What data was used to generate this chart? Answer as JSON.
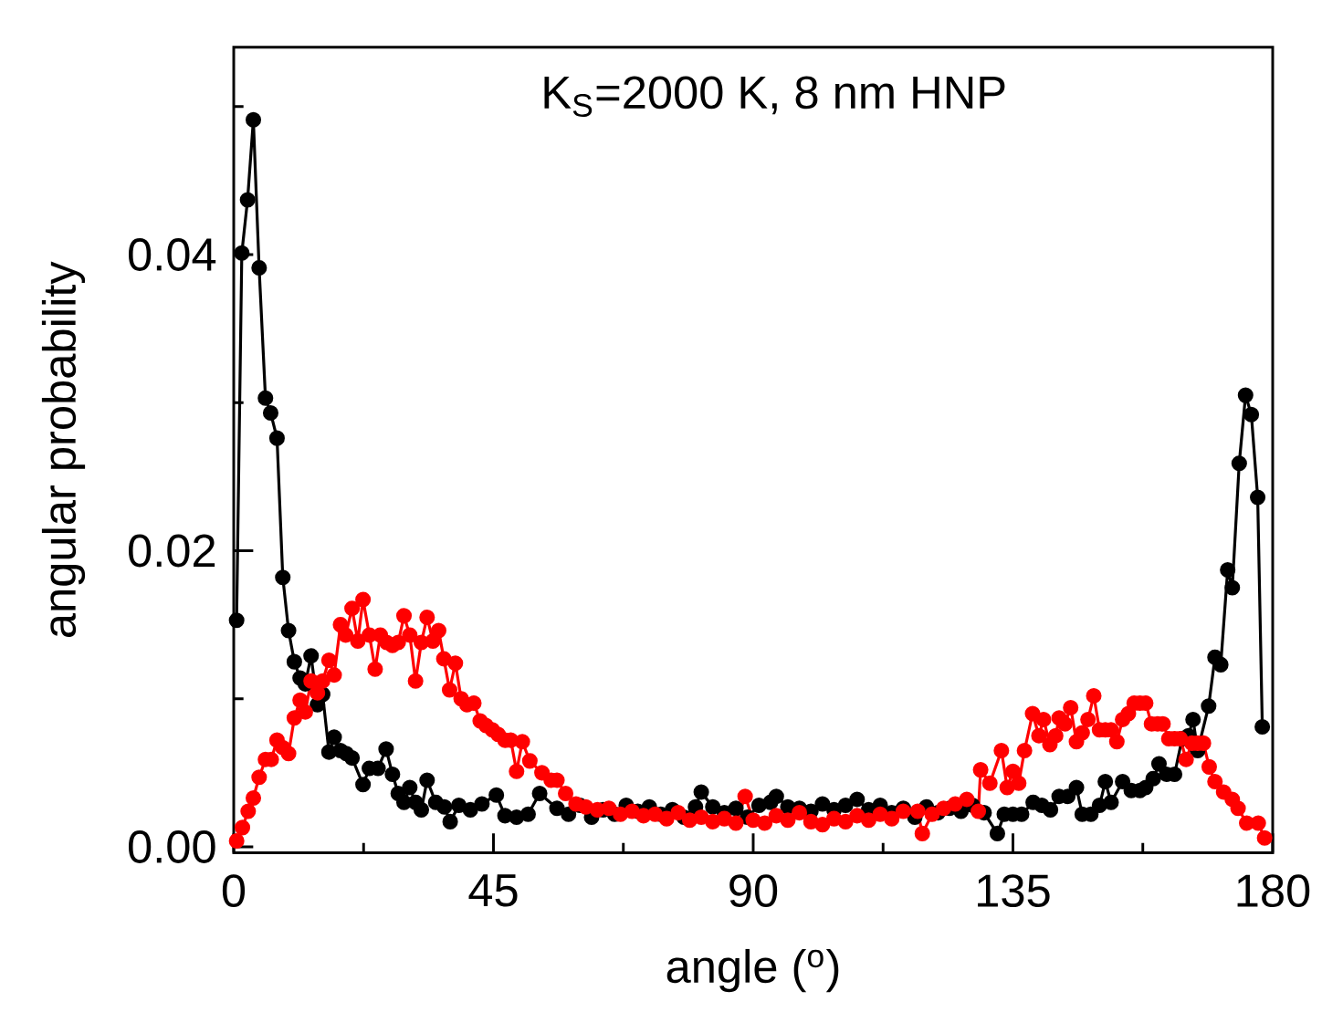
{
  "chart_data": {
    "type": "line",
    "xlabel": "angle ($^{o}$)",
    "ylabel": "angular probability",
    "annotations": [
      "K$_{S}$=2000 K, 8 nm HNP"
    ],
    "xlim": [
      0,
      180
    ],
    "ylim": [
      -0.0004,
      0.054
    ],
    "xticks": [
      0,
      {
        "value": 22.5,
        "label": null
      },
      45,
      {
        "value": 67.5,
        "label": null
      },
      90,
      {
        "value": 112.5,
        "label": null
      },
      135,
      {
        "value": 157.5,
        "label": null
      },
      180
    ],
    "yticks": [
      {
        "value": 0,
        "label": "0.00"
      },
      {
        "value": 0.01,
        "label": null
      },
      {
        "value": 0.02,
        "label": "0.02"
      },
      {
        "value": 0.03,
        "label": null
      },
      {
        "value": 0.04,
        "label": "0.04"
      },
      {
        "value": 0.05,
        "label": null
      }
    ],
    "marker": "circle",
    "line_style": "solid",
    "series": [
      {
        "color": "#000000",
        "x": [
          0.5,
          1.4,
          2.4,
          3.4,
          4.4,
          5.5,
          6.4,
          7.5,
          8.5,
          9.5,
          10.5,
          11.5,
          12.4,
          13.4,
          14.5,
          15.4,
          16.5,
          17.4,
          18.5,
          19.5,
          20.5,
          22.4,
          23.5,
          25,
          26.4,
          27.5,
          28.5,
          29.5,
          30.5,
          31.5,
          32.5,
          33.5,
          35,
          36.5,
          37.5,
          39,
          41,
          43,
          45.5,
          47,
          49,
          51,
          53,
          56,
          58,
          60,
          62,
          64,
          66,
          68,
          70,
          72,
          74,
          76,
          78,
          80,
          81,
          83,
          85,
          87,
          89,
          91,
          93,
          94,
          96,
          98,
          100,
          102,
          104,
          106,
          108,
          110,
          112,
          114,
          116,
          118,
          120,
          122,
          124,
          126,
          128,
          130,
          132.3,
          133.5,
          135,
          136.5,
          138.5,
          140,
          141.5,
          143,
          144.5,
          146,
          147,
          148.5,
          150,
          151,
          152,
          154,
          155.5,
          157,
          158,
          159.3,
          160.3,
          161.6,
          163,
          164.3,
          165.4,
          166.2,
          167,
          168.9,
          170,
          171,
          172.2,
          173,
          174.2,
          175.3,
          176.3,
          177.4,
          178.2
        ],
        "values": [
          0.0153,
          0.0401,
          0.0437,
          0.0491,
          0.0391,
          0.0303,
          0.0293,
          0.0276,
          0.0182,
          0.0146,
          0.0125,
          0.0114,
          0.011,
          0.0129,
          0.0096,
          0.0103,
          0.0064,
          0.0074,
          0.0065,
          0.0063,
          0.006,
          0.0042,
          0.0053,
          0.0053,
          0.0066,
          0.0049,
          0.0036,
          0.003,
          0.004,
          0.003,
          0.0025,
          0.0045,
          0.003,
          0.0027,
          0.0017,
          0.0028,
          0.0025,
          0.0029,
          0.0035,
          0.0021,
          0.002,
          0.0022,
          0.0036,
          0.0026,
          0.0022,
          0.0028,
          0.002,
          0.0025,
          0.0022,
          0.0028,
          0.0024,
          0.0027,
          0.0022,
          0.0025,
          0.002,
          0.0027,
          0.0037,
          0.0027,
          0.0023,
          0.0026,
          0.002,
          0.0028,
          0.003,
          0.0034,
          0.0027,
          0.0026,
          0.0024,
          0.0029,
          0.0025,
          0.0028,
          0.0032,
          0.0025,
          0.0028,
          0.0023,
          0.0026,
          0.002,
          0.0027,
          0.0023,
          0.0026,
          0.0024,
          0.0028,
          0.0023,
          0.0009,
          0.0022,
          0.0022,
          0.0022,
          0.003,
          0.0028,
          0.0025,
          0.0034,
          0.0034,
          0.004,
          0.0022,
          0.0022,
          0.0028,
          0.0044,
          0.003,
          0.0044,
          0.0038,
          0.0038,
          0.004,
          0.0046,
          0.0056,
          0.0049,
          0.0049,
          0.0073,
          0.0075,
          0.0086,
          0.0065,
          0.0095,
          0.0128,
          0.0123,
          0.0187,
          0.0175,
          0.0259,
          0.0305,
          0.0292,
          0.0236,
          0.0081
        ]
      },
      {
        "color": "#ff0000",
        "x": [
          0.5,
          1.5,
          2.5,
          3.4,
          4.4,
          5.5,
          6.5,
          7.5,
          8.5,
          9.5,
          10.5,
          11.5,
          12.4,
          13.4,
          14.5,
          15.4,
          16.5,
          17.4,
          18.5,
          19.4,
          20.5,
          21.5,
          22.4,
          23.5,
          24.5,
          25.4,
          26.5,
          27.5,
          28.5,
          29.5,
          30.5,
          31.5,
          32.5,
          33.5,
          34.5,
          35.5,
          36.4,
          37.4,
          38.4,
          39.4,
          40.4,
          41.6,
          42.7,
          43.7,
          44.8,
          45.8,
          47,
          48,
          49,
          50,
          51.3,
          53.4,
          55,
          56,
          57.5,
          59.3,
          61,
          63,
          65,
          67,
          69,
          71,
          73,
          75,
          77,
          79,
          81,
          83,
          85,
          87,
          88.6,
          90,
          92,
          94,
          96,
          98,
          100,
          102,
          104,
          106,
          108,
          110,
          112,
          114,
          116,
          118.5,
          119.3,
          121,
          123,
          125,
          127,
          129,
          129.4,
          131,
          133,
          134,
          135,
          136,
          137,
          138.4,
          139.5,
          140.3,
          141.4,
          142.4,
          143,
          144,
          145,
          146,
          147,
          148,
          149,
          150,
          151,
          152,
          153,
          154,
          155,
          156,
          157,
          158,
          159,
          160,
          161,
          162,
          163,
          164,
          165,
          166,
          167,
          168,
          169,
          170,
          171.5,
          173,
          174,
          175.5,
          177.5,
          178.6
        ],
        "values": [
          0.0004,
          0.0013,
          0.0024,
          0.0033,
          0.0047,
          0.0059,
          0.0059,
          0.0072,
          0.0067,
          0.0063,
          0.0087,
          0.0099,
          0.0091,
          0.0112,
          0.0104,
          0.0112,
          0.0126,
          0.0116,
          0.015,
          0.0143,
          0.0161,
          0.0139,
          0.0167,
          0.0143,
          0.012,
          0.0143,
          0.0138,
          0.0136,
          0.0138,
          0.0156,
          0.0143,
          0.0112,
          0.0138,
          0.0155,
          0.0139,
          0.0146,
          0.0127,
          0.0106,
          0.0124,
          0.01,
          0.0096,
          0.0097,
          0.0085,
          0.0082,
          0.0079,
          0.0076,
          0.0072,
          0.0072,
          0.0051,
          0.0071,
          0.0058,
          0.005,
          0.0045,
          0.0045,
          0.0036,
          0.0029,
          0.0027,
          0.0025,
          0.0026,
          0.0022,
          0.0024,
          0.0021,
          0.0022,
          0.0019,
          0.0023,
          0.0018,
          0.002,
          0.0017,
          0.0019,
          0.0016,
          0.0034,
          0.0018,
          0.0016,
          0.0021,
          0.0018,
          0.0023,
          0.0017,
          0.0015,
          0.0019,
          0.0017,
          0.0021,
          0.0018,
          0.0022,
          0.0019,
          0.0024,
          0.0024,
          0.0009,
          0.0022,
          0.0026,
          0.0029,
          0.0032,
          0.0024,
          0.0052,
          0.0043,
          0.0065,
          0.004,
          0.0051,
          0.0043,
          0.0065,
          0.009,
          0.0075,
          0.0086,
          0.0069,
          0.0075,
          0.0087,
          0.0083,
          0.0094,
          0.0071,
          0.0077,
          0.0086,
          0.0102,
          0.0079,
          0.0079,
          0.0079,
          0.0071,
          0.0086,
          0.009,
          0.0097,
          0.0097,
          0.0097,
          0.0083,
          0.0083,
          0.0083,
          0.0073,
          0.0073,
          0.0073,
          0.0059,
          0.007,
          0.007,
          0.007,
          0.0054,
          0.0044,
          0.0037,
          0.0032,
          0.0026,
          0.0016,
          0.0016,
          0.0006
        ]
      }
    ]
  }
}
